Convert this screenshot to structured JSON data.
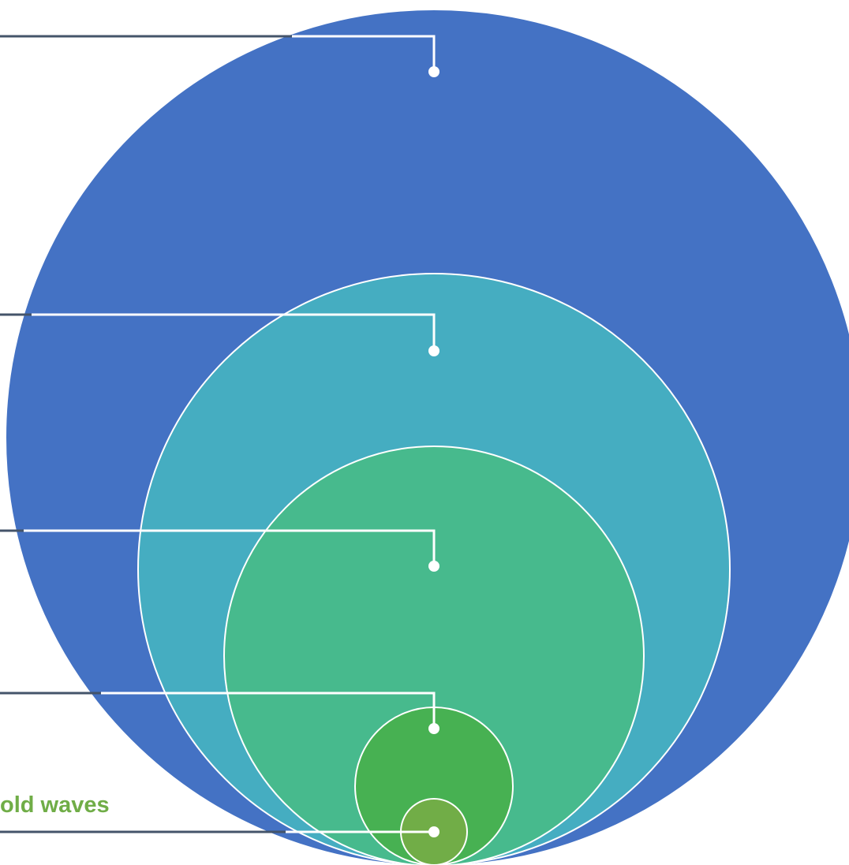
{
  "diagram": {
    "colors": {
      "circle_1": "#4472C4",
      "circle_2": "#45ADC1",
      "circle_3": "#47BA8D",
      "circle_4": "#47B152",
      "circle_5": "#71AD47",
      "ring_stroke": "#FFFFFF",
      "leader_outer": "#44546A",
      "leader_inner": "#FFFFFF",
      "label_color": "#70AD47"
    },
    "labels": {
      "innermost": "old waves"
    }
  }
}
